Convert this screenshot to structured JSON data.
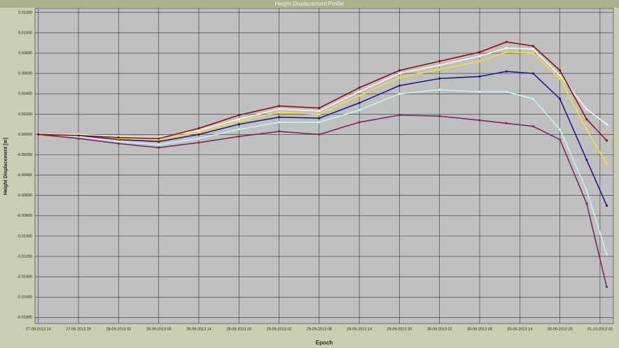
{
  "chart_data": {
    "type": "line",
    "title": "Height Displacement Profile",
    "xlabel": "Epoch",
    "ylabel": "Height Displacement [m]",
    "grid": true,
    "xlim": [
      -0.5,
      86
    ],
    "xticks": [
      {
        "value": 0,
        "label": "27-09-2013 14"
      },
      {
        "value": 6,
        "label": "27-09-2013 20"
      },
      {
        "value": 12,
        "label": "28-09-2013 02"
      },
      {
        "value": 18,
        "label": "28-09-2013 08"
      },
      {
        "value": 24,
        "label": "28-09-2013 14"
      },
      {
        "value": 30,
        "label": "28-09-2013 20"
      },
      {
        "value": 36,
        "label": "29-09-2013 02"
      },
      {
        "value": 42,
        "label": "29-09-2013 08"
      },
      {
        "value": 48,
        "label": "29-09-2013 14"
      },
      {
        "value": 54,
        "label": "29-09-2013 20"
      },
      {
        "value": 60,
        "label": "30-09-2013 02"
      },
      {
        "value": 66,
        "label": "30-09-2013 08"
      },
      {
        "value": 72,
        "label": "30-09-2013 14"
      },
      {
        "value": 78,
        "label": "30-09-2013 20"
      },
      {
        "value": 84,
        "label": "01-10-2013 02"
      }
    ],
    "ylim": [
      -0.0186,
      0.0124
    ],
    "yticks": [
      {
        "value": 0.012,
        "label": "0.01200"
      },
      {
        "value": 0.01,
        "label": "0.01000"
      },
      {
        "value": 0.008,
        "label": "0.00800"
      },
      {
        "value": 0.006,
        "label": "0.00600"
      },
      {
        "value": 0.004,
        "label": "0.00400"
      },
      {
        "value": 0.002,
        "label": "0.00200"
      },
      {
        "value": 0,
        "label": "0.00000"
      },
      {
        "value": -0.002,
        "label": "-0.00200"
      },
      {
        "value": -0.004,
        "label": "-0.00400"
      },
      {
        "value": -0.006,
        "label": "-0.00600"
      },
      {
        "value": -0.008,
        "label": "-0.00800"
      },
      {
        "value": -0.01,
        "label": "-0.01000"
      },
      {
        "value": -0.012,
        "label": "-0.01200"
      },
      {
        "value": -0.014,
        "label": "-0.01400"
      },
      {
        "value": -0.016,
        "label": "-0.01600"
      },
      {
        "value": -0.018,
        "label": "-0.01800"
      }
    ],
    "x": [
      0,
      6,
      12,
      18,
      24,
      30,
      36,
      42,
      48,
      54,
      60,
      66,
      70,
      74,
      78,
      82,
      85
    ],
    "series": [
      {
        "color": "#c7f2f2",
        "values": [
          0,
          -0.0002,
          -0.0007,
          -0.001,
          -0.0004,
          0.0005,
          0.0012,
          0.0012,
          0.0024,
          0.004,
          0.0044,
          0.0042,
          0.0042,
          0.0035,
          0.0005,
          -0.0055,
          -0.0118
        ]
      },
      {
        "color": "#7a2a5a",
        "values": [
          0,
          -0.0004,
          -0.0009,
          -0.0013,
          -0.0008,
          -0.0002,
          0.0003,
          0,
          0.0012,
          0.0019,
          0.0018,
          0.0014,
          0.0011,
          0.0008,
          -0.0005,
          -0.0068,
          -0.015
        ]
      },
      {
        "color": "#1c1c84",
        "values": [
          0,
          -0.0001,
          -0.0005,
          -0.0007,
          0,
          0.001,
          0.0017,
          0.0016,
          0.0031,
          0.0048,
          0.0055,
          0.0057,
          0.0062,
          0.006,
          0.0035,
          -0.0025,
          -0.007
        ]
      },
      {
        "color": "#f2e030",
        "values": [
          0,
          0,
          -0.0004,
          -0.0005,
          0.0002,
          0.0013,
          0.0022,
          0.002,
          0.0038,
          0.0056,
          0.0064,
          0.0072,
          0.0081,
          0.008,
          0.0055,
          0.0005,
          -0.0029
        ]
      },
      {
        "color": "#f4f4f4",
        "values": [
          0,
          0,
          -0.0002,
          -0.0003,
          0.0004,
          0.0015,
          0.0025,
          0.0023,
          0.0042,
          0.006,
          0.0068,
          0.0077,
          0.0085,
          0.0084,
          0.0058,
          0.0025,
          0.001
        ]
      },
      {
        "color": "#8b1010",
        "values": [
          0,
          -0.0001,
          -0.0003,
          -0.0004,
          0.0006,
          0.0019,
          0.0028,
          0.0026,
          0.0046,
          0.0063,
          0.0072,
          0.0081,
          0.0091,
          0.0087,
          0.0063,
          0.0015,
          -0.0006
        ]
      }
    ]
  }
}
